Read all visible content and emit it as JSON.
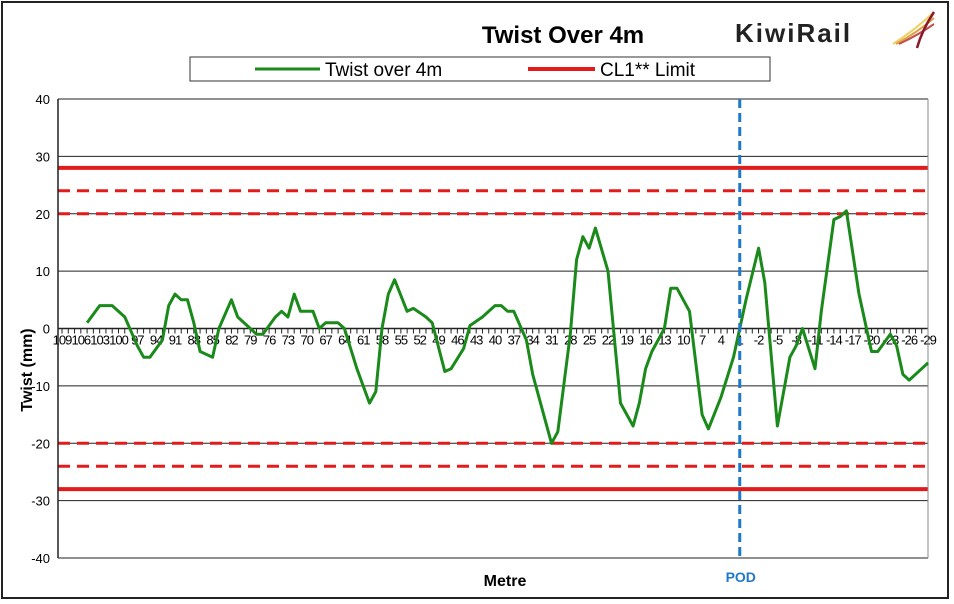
{
  "chart_data": {
    "type": "line",
    "title": "Twist Over 4m",
    "logo_text": "KiwiRail",
    "xlabel": "Metre",
    "ylabel": "Twist (mm)",
    "ylim": [
      -40,
      40
    ],
    "yticks": [
      40,
      30,
      20,
      10,
      0,
      -10,
      -20,
      -30,
      -40
    ],
    "xlim": [
      109,
      -29
    ],
    "xticks": [
      109,
      106,
      103,
      100,
      97,
      94,
      91,
      88,
      85,
      82,
      79,
      76,
      73,
      70,
      67,
      64,
      61,
      58,
      55,
      52,
      49,
      46,
      43,
      40,
      37,
      34,
      31,
      28,
      25,
      22,
      19,
      16,
      13,
      10,
      7,
      4,
      1,
      -2,
      -5,
      -8,
      -11,
      -14,
      -17,
      -20,
      -23,
      -26,
      -29
    ],
    "grid": "horizontal",
    "legend": {
      "placement": "top",
      "entries": [
        "Twist over 4m",
        "CL1** Limit"
      ]
    },
    "series": [
      {
        "name": "Twist over 4m",
        "color": "#1a8a1a",
        "x": [
          105,
          103,
          101,
          99,
          97,
          96,
          95,
          93,
          92,
          91,
          90,
          89,
          88,
          87,
          85,
          84,
          82,
          81,
          79,
          78,
          77,
          75,
          74,
          73,
          72,
          71,
          70,
          69,
          68,
          67,
          65,
          64,
          62,
          60,
          59,
          58,
          57,
          56,
          54,
          53,
          51,
          50,
          48,
          47,
          45,
          44,
          42,
          40,
          39,
          38,
          37,
          35,
          34,
          31,
          30,
          28,
          27,
          26,
          25,
          24,
          22,
          20,
          18,
          17,
          16,
          15,
          13,
          12,
          11,
          9,
          7,
          6,
          4,
          2,
          0,
          -2,
          -3,
          -5,
          -7,
          -8,
          -9,
          -11,
          -12,
          -14,
          -15,
          -16,
          -18,
          -20,
          -21,
          -23,
          -24,
          -25,
          -26,
          -28,
          -29
        ],
        "y": [
          1,
          4,
          4,
          2,
          -3,
          -5,
          -5,
          -2,
          4,
          6,
          5,
          5,
          1,
          -4,
          -5,
          0,
          5,
          2,
          0,
          -1,
          -1,
          2,
          3,
          2,
          6,
          3,
          3,
          3,
          0,
          1,
          1,
          0,
          -7,
          -13,
          -11,
          0,
          6,
          8.5,
          3,
          3.5,
          2,
          1,
          -7.5,
          -7,
          -3.5,
          0.5,
          2,
          4,
          4,
          3,
          3,
          -2,
          -8,
          -20,
          -18,
          -1,
          12,
          16,
          14,
          17.5,
          10,
          -13,
          -17,
          -13,
          -7,
          -4,
          0,
          7,
          7,
          3,
          -15,
          -17.5,
          -12,
          -5,
          5,
          14,
          8,
          -17,
          -5,
          -3,
          0,
          -7,
          3,
          19,
          19.5,
          20.5,
          6,
          -4,
          -4,
          -1,
          -3,
          -8,
          -9,
          -7,
          -6
        ]
      }
    ],
    "limits": [
      {
        "name": "CL1** Limit",
        "values": [
          28,
          -28
        ],
        "style": "solid",
        "color": "#e31b1b"
      },
      {
        "values": [
          24,
          -24
        ],
        "style": "dashed",
        "color": "#e31b1b"
      },
      {
        "values": [
          20,
          -20
        ],
        "style": "dashed",
        "color": "#e31b1b"
      }
    ],
    "annotations": [
      {
        "label": "POD",
        "x": 1,
        "color": "#1f78c8",
        "style": "dashed"
      }
    ]
  }
}
